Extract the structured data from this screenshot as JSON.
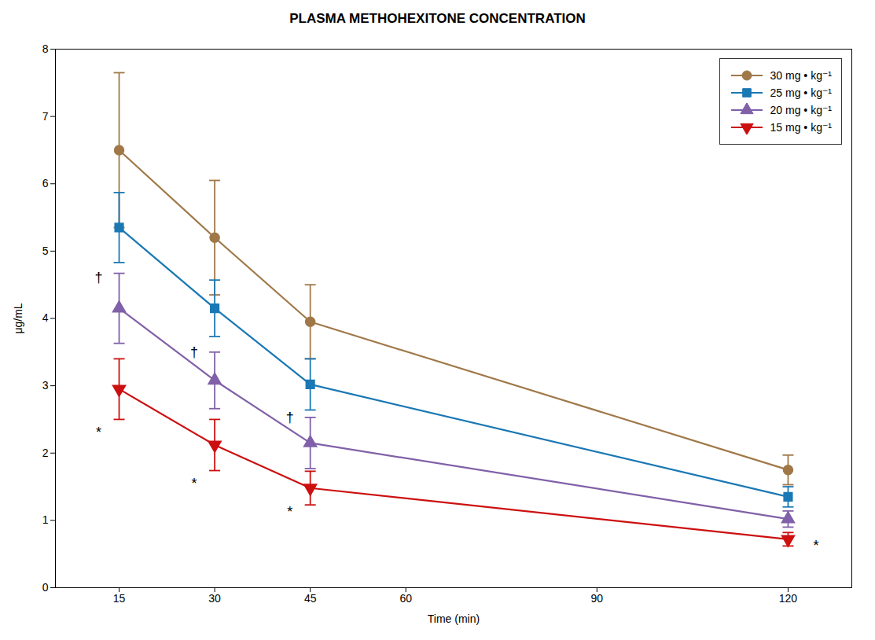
{
  "chart_data": {
    "type": "line",
    "title": "PLASMA METHOHEXITONE CONCENTRATION",
    "xlabel": "Time (min)",
    "ylabel": "μg/mL",
    "x": [
      15,
      30,
      45,
      120
    ],
    "xlim": [
      5,
      130
    ],
    "ylim": [
      0,
      8
    ],
    "xticks": [
      15,
      30,
      45,
      60,
      90,
      120
    ],
    "yticks": [
      0,
      1,
      2,
      3,
      4,
      5,
      6,
      7,
      8
    ],
    "grid": false,
    "legend": "upper right",
    "series": [
      {
        "name": "30 mg • kg⁻¹",
        "color": "#a07848",
        "marker": "circle",
        "values": [
          6.5,
          5.2,
          3.95,
          1.75
        ],
        "yerr": [
          1.15,
          0.85,
          0.55,
          0.22
        ]
      },
      {
        "name": "25 mg • kg⁻¹",
        "color": "#1a78b4",
        "marker": "square",
        "values": [
          5.35,
          4.15,
          3.02,
          1.35
        ],
        "yerr": [
          0.52,
          0.42,
          0.38,
          0.15
        ]
      },
      {
        "name": "20 mg • kg⁻¹",
        "color": "#8060a8",
        "marker": "triangle-up",
        "values": [
          4.15,
          3.08,
          2.15,
          1.02
        ],
        "yerr": [
          0.52,
          0.42,
          0.38,
          0.12
        ]
      },
      {
        "name": "15 mg • kg⁻¹",
        "color": "#cc1010",
        "marker": "triangle-down",
        "values": [
          2.95,
          2.12,
          1.48,
          0.72
        ],
        "yerr": [
          0.45,
          0.38,
          0.25,
          0.1
        ]
      }
    ],
    "annotations": [
      {
        "text": "†",
        "x": 15,
        "y": 4.6
      },
      {
        "text": "†",
        "x": 30,
        "y": 3.5
      },
      {
        "text": "†",
        "x": 45,
        "y": 2.53
      },
      {
        "text": "*",
        "x": 15,
        "y": 2.3
      },
      {
        "text": "*",
        "x": 30,
        "y": 1.55
      },
      {
        "text": "*",
        "x": 45,
        "y": 1.13
      },
      {
        "text": "*",
        "x": 120,
        "y": 0.62
      }
    ]
  }
}
